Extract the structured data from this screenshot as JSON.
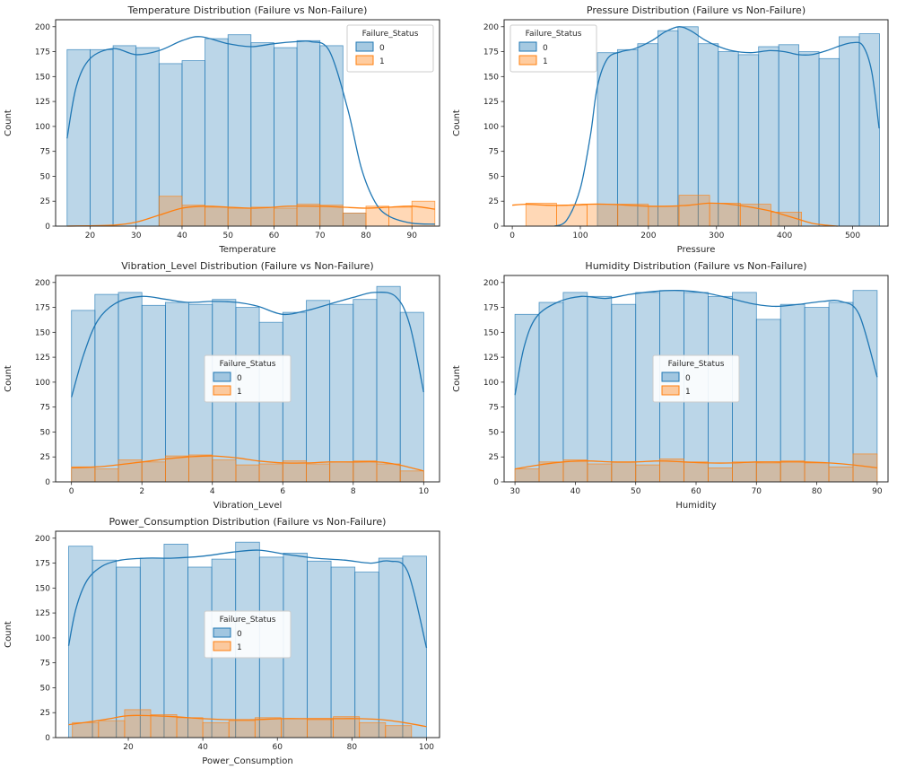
{
  "figure": {
    "background": "#ffffff"
  },
  "legend": {
    "title": "Failure_Status",
    "entries": [
      {
        "label": "0",
        "color": "#1f77b4"
      },
      {
        "label": "1",
        "color": "#ff7f0e"
      }
    ]
  },
  "chart_data": [
    {
      "type": "histogram_kde",
      "title": "Temperature Distribution (Failure vs Non-Failure)",
      "xlabel": "Temperature",
      "ylabel": "Count",
      "xlim": [
        12.5,
        96
      ],
      "ylim": [
        0,
        207
      ],
      "xticks": [
        20,
        30,
        40,
        50,
        60,
        70,
        80,
        90
      ],
      "yticks": [
        0,
        25,
        50,
        75,
        100,
        125,
        150,
        175,
        200
      ],
      "legend_pos": "upper-right",
      "series": [
        {
          "name": "0",
          "color": "#1f77b4",
          "bin_start": 15,
          "bin_width": 5,
          "counts": [
            177,
            177,
            181,
            179,
            163,
            166,
            188,
            192,
            184,
            179,
            186,
            181,
            13
          ],
          "kde": [
            [
              15,
              88
            ],
            [
              17,
              140
            ],
            [
              20,
              168
            ],
            [
              25,
              178
            ],
            [
              30,
              172
            ],
            [
              35,
              176
            ],
            [
              40,
              186
            ],
            [
              44,
              190
            ],
            [
              50,
              183
            ],
            [
              55,
              180
            ],
            [
              60,
              183
            ],
            [
              65,
              185
            ],
            [
              68,
              185
            ],
            [
              72,
              176
            ],
            [
              76,
              118
            ],
            [
              79,
              58
            ],
            [
              82,
              24
            ],
            [
              85,
              10
            ],
            [
              90,
              3
            ],
            [
              95,
              2
            ]
          ]
        },
        {
          "name": "1",
          "color": "#ff7f0e",
          "bin_start": 35,
          "bin_width": 5,
          "counts": [
            30,
            21,
            19,
            18,
            19,
            18,
            22,
            21,
            13,
            20,
            19,
            25
          ],
          "kde": [
            [
              15,
              0
            ],
            [
              25,
              1
            ],
            [
              30,
              4
            ],
            [
              35,
              11
            ],
            [
              40,
              18
            ],
            [
              45,
              20
            ],
            [
              50,
              19
            ],
            [
              55,
              18
            ],
            [
              60,
              19
            ],
            [
              63,
              20
            ],
            [
              70,
              20
            ],
            [
              75,
              19
            ],
            [
              80,
              18
            ],
            [
              85,
              19
            ],
            [
              90,
              20
            ],
            [
              95,
              17
            ]
          ]
        }
      ]
    },
    {
      "type": "histogram_kde",
      "title": "Pressure Distribution (Failure vs Non-Failure)",
      "xlabel": "Pressure",
      "ylabel": "Count",
      "xlim": [
        -12,
        552
      ],
      "ylim": [
        0,
        207
      ],
      "xticks": [
        0,
        100,
        200,
        300,
        400,
        500
      ],
      "yticks": [
        0,
        25,
        50,
        75,
        100,
        125,
        150,
        175,
        200
      ],
      "legend_pos": "upper-left",
      "series": [
        {
          "name": "0",
          "color": "#1f77b4",
          "bin_start": 125,
          "bin_width": 29.6,
          "counts": [
            174,
            177,
            183,
            196,
            200,
            183,
            175,
            172,
            180,
            182,
            175,
            168,
            190,
            193
          ],
          "kde": [
            [
              62,
              0
            ],
            [
              80,
              6
            ],
            [
              100,
              38
            ],
            [
              115,
              92
            ],
            [
              125,
              140
            ],
            [
              140,
              168
            ],
            [
              160,
              175
            ],
            [
              180,
              178
            ],
            [
              205,
              186
            ],
            [
              225,
              195
            ],
            [
              245,
              200
            ],
            [
              262,
              196
            ],
            [
              282,
              187
            ],
            [
              300,
              181
            ],
            [
              322,
              176
            ],
            [
              350,
              174
            ],
            [
              378,
              176
            ],
            [
              400,
              175
            ],
            [
              420,
              172
            ],
            [
              440,
              172
            ],
            [
              462,
              176
            ],
            [
              482,
              181
            ],
            [
              500,
              184
            ],
            [
              515,
              181
            ],
            [
              528,
              155
            ],
            [
              539,
              98
            ]
          ]
        },
        {
          "name": "1",
          "color": "#ff7f0e",
          "bin_start": 20,
          "bin_width": 45,
          "counts": [
            23,
            21,
            22,
            22,
            20,
            31,
            23,
            22,
            14
          ],
          "kde": [
            [
              0,
              21
            ],
            [
              20,
              22
            ],
            [
              50,
              21
            ],
            [
              80,
              21
            ],
            [
              110,
              22
            ],
            [
              140,
              22
            ],
            [
              170,
              21
            ],
            [
              200,
              20
            ],
            [
              230,
              20
            ],
            [
              260,
              21
            ],
            [
              290,
              23
            ],
            [
              320,
              22
            ],
            [
              350,
              19
            ],
            [
              380,
              15
            ],
            [
              400,
              11
            ],
            [
              420,
              7
            ],
            [
              440,
              3
            ],
            [
              460,
              1
            ],
            [
              478,
              0
            ]
          ]
        }
      ]
    },
    {
      "type": "histogram_kde",
      "title": "Vibration_Level Distribution (Failure vs Non-Failure)",
      "xlabel": "Vibration_Level",
      "ylabel": "Count",
      "xlim": [
        -0.45,
        10.45
      ],
      "ylim": [
        0,
        207
      ],
      "xticks": [
        0,
        2,
        4,
        6,
        8,
        10
      ],
      "yticks": [
        0,
        25,
        50,
        75,
        100,
        125,
        150,
        175,
        200
      ],
      "legend_pos": "center",
      "series": [
        {
          "name": "0",
          "color": "#1f77b4",
          "bin_start": 0,
          "bin_width": 0.6667,
          "counts": [
            172,
            188,
            190,
            177,
            180,
            178,
            183,
            175,
            160,
            170,
            182,
            178,
            183,
            196,
            170
          ],
          "kde": [
            [
              0,
              85
            ],
            [
              0.35,
              128
            ],
            [
              0.75,
              162
            ],
            [
              1.3,
              180
            ],
            [
              2,
              186
            ],
            [
              2.7,
              183
            ],
            [
              3.3,
              180
            ],
            [
              4,
              181
            ],
            [
              4.7,
              180
            ],
            [
              5.3,
              176
            ],
            [
              6,
              168
            ],
            [
              6.7,
              172
            ],
            [
              7.3,
              178
            ],
            [
              8,
              185
            ],
            [
              8.6,
              190
            ],
            [
              9.2,
              186
            ],
            [
              9.6,
              158
            ],
            [
              10,
              90
            ]
          ]
        },
        {
          "name": "1",
          "color": "#ff7f0e",
          "bin_start": 0,
          "bin_width": 0.6667,
          "counts": [
            15,
            13,
            22,
            20,
            26,
            27,
            22,
            17,
            18,
            21,
            18,
            20,
            21,
            18,
            11
          ],
          "kde": [
            [
              0,
              14
            ],
            [
              0.7,
              15
            ],
            [
              1.3,
              17
            ],
            [
              2,
              20
            ],
            [
              2.7,
              23
            ],
            [
              3.3,
              25
            ],
            [
              4,
              26
            ],
            [
              4.7,
              24
            ],
            [
              5.3,
              21
            ],
            [
              6,
              19
            ],
            [
              6.7,
              19
            ],
            [
              7.3,
              20
            ],
            [
              8,
              20
            ],
            [
              8.7,
              20
            ],
            [
              9.3,
              17
            ],
            [
              10,
              11
            ]
          ]
        }
      ]
    },
    {
      "type": "histogram_kde",
      "title": "Humidity Distribution (Failure vs Non-Failure)",
      "xlabel": "Humidity",
      "ylabel": "Count",
      "xlim": [
        28.2,
        91.8
      ],
      "ylim": [
        0,
        207
      ],
      "xticks": [
        30,
        40,
        50,
        60,
        70,
        80,
        90
      ],
      "yticks": [
        0,
        25,
        50,
        75,
        100,
        125,
        150,
        175,
        200
      ],
      "legend_pos": "center",
      "series": [
        {
          "name": "0",
          "color": "#1f77b4",
          "bin_start": 30,
          "bin_width": 4,
          "counts": [
            168,
            180,
            190,
            186,
            178,
            190,
            192,
            190,
            186,
            190,
            163,
            178,
            175,
            180,
            192
          ],
          "kde": [
            [
              30,
              87
            ],
            [
              31.5,
              135
            ],
            [
              33.5,
              165
            ],
            [
              37,
              180
            ],
            [
              41,
              186
            ],
            [
              45,
              184
            ],
            [
              49,
              188
            ],
            [
              53,
              191
            ],
            [
              57,
              192
            ],
            [
              61,
              190
            ],
            [
              65,
              185
            ],
            [
              69,
              179
            ],
            [
              73,
              176
            ],
            [
              77,
              178
            ],
            [
              81,
              181
            ],
            [
              84,
              181
            ],
            [
              87,
              168
            ],
            [
              90,
              105
            ]
          ]
        },
        {
          "name": "1",
          "color": "#ff7f0e",
          "bin_start": 30,
          "bin_width": 4,
          "counts": [
            13,
            20,
            22,
            18,
            20,
            17,
            23,
            20,
            14,
            20,
            19,
            21,
            19,
            15,
            28
          ],
          "kde": [
            [
              30,
              13
            ],
            [
              34,
              17
            ],
            [
              38,
              20
            ],
            [
              42,
              21
            ],
            [
              46,
              20
            ],
            [
              50,
              20
            ],
            [
              54,
              21
            ],
            [
              58,
              20
            ],
            [
              62,
              19
            ],
            [
              66,
              19
            ],
            [
              70,
              20
            ],
            [
              74,
              20
            ],
            [
              78,
              20
            ],
            [
              82,
              19
            ],
            [
              86,
              17
            ],
            [
              90,
              14
            ]
          ]
        }
      ]
    },
    {
      "type": "histogram_kde",
      "title": "Power_Consumption Distribution (Failure vs Non-Failure)",
      "xlabel": "Power_Consumption",
      "ylabel": "Count",
      "xlim": [
        0.5,
        103.5
      ],
      "ylim": [
        0,
        207
      ],
      "xticks": [
        20,
        40,
        60,
        80,
        100
      ],
      "yticks": [
        0,
        25,
        50,
        75,
        100,
        125,
        150,
        175,
        200
      ],
      "legend_pos": "center",
      "series": [
        {
          "name": "0",
          "color": "#1f77b4",
          "bin_start": 4,
          "bin_width": 6.4,
          "counts": [
            192,
            178,
            171,
            180,
            194,
            171,
            179,
            196,
            181,
            185,
            177,
            171,
            166,
            180,
            182
          ],
          "kde": [
            [
              4,
              92
            ],
            [
              6,
              130
            ],
            [
              9,
              158
            ],
            [
              13,
              172
            ],
            [
              18,
              178
            ],
            [
              25,
              180
            ],
            [
              32,
              180
            ],
            [
              40,
              182
            ],
            [
              48,
              186
            ],
            [
              55,
              188
            ],
            [
              62,
              184
            ],
            [
              70,
              180
            ],
            [
              78,
              178
            ],
            [
              85,
              175
            ],
            [
              90,
              177
            ],
            [
              95,
              166
            ],
            [
              100,
              90
            ]
          ]
        },
        {
          "name": "1",
          "color": "#ff7f0e",
          "bin_start": 5,
          "bin_width": 7,
          "counts": [
            15,
            17,
            28,
            23,
            20,
            15,
            17,
            20,
            19,
            18,
            21,
            15,
            12
          ],
          "kde": [
            [
              4,
              13
            ],
            [
              10,
              16
            ],
            [
              15,
              19
            ],
            [
              20,
              22
            ],
            [
              26,
              22
            ],
            [
              32,
              21
            ],
            [
              40,
              19
            ],
            [
              47,
              18
            ],
            [
              54,
              18
            ],
            [
              61,
              19
            ],
            [
              68,
              19
            ],
            [
              75,
              19
            ],
            [
              82,
              19
            ],
            [
              88,
              18
            ],
            [
              94,
              15
            ],
            [
              100,
              11
            ]
          ]
        }
      ]
    }
  ]
}
